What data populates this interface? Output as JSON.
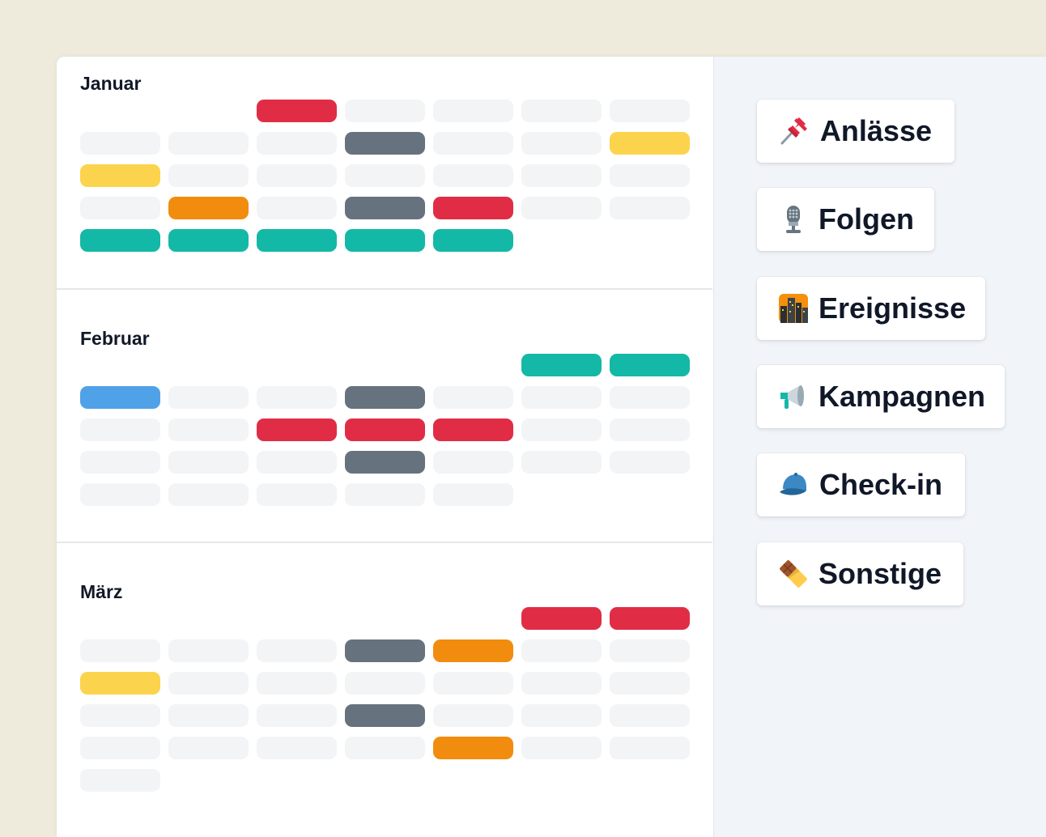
{
  "calendar": {
    "months": [
      {
        "name": "Januar",
        "rows": [
          [
            "none",
            "none",
            "red",
            "empty",
            "empty",
            "empty",
            "empty"
          ],
          [
            "empty",
            "empty",
            "empty",
            "gray",
            "empty",
            "empty",
            "yellow"
          ],
          [
            "yellow",
            "empty",
            "empty",
            "empty",
            "empty",
            "empty",
            "empty"
          ],
          [
            "empty",
            "orange",
            "empty",
            "gray",
            "red",
            "empty",
            "empty"
          ],
          [
            "teal",
            "teal",
            "teal",
            "teal",
            "teal",
            "none",
            "none"
          ]
        ]
      },
      {
        "name": "Februar",
        "rows": [
          [
            "none",
            "none",
            "none",
            "none",
            "none",
            "teal",
            "teal"
          ],
          [
            "blue",
            "empty",
            "empty",
            "gray",
            "empty",
            "empty",
            "empty"
          ],
          [
            "empty",
            "empty",
            "red",
            "red",
            "red",
            "empty",
            "empty"
          ],
          [
            "empty",
            "empty",
            "empty",
            "gray",
            "empty",
            "empty",
            "empty"
          ],
          [
            "empty",
            "empty",
            "empty",
            "empty",
            "empty",
            "none",
            "none"
          ]
        ]
      },
      {
        "name": "März",
        "rows": [
          [
            "none",
            "none",
            "none",
            "none",
            "none",
            "red",
            "red"
          ],
          [
            "empty",
            "empty",
            "empty",
            "gray",
            "orange",
            "empty",
            "empty"
          ],
          [
            "yellow",
            "empty",
            "empty",
            "empty",
            "empty",
            "empty",
            "empty"
          ],
          [
            "empty",
            "empty",
            "empty",
            "gray",
            "empty",
            "empty",
            "empty"
          ],
          [
            "empty",
            "empty",
            "empty",
            "empty",
            "orange",
            "empty",
            "empty"
          ],
          [
            "empty",
            "none",
            "none",
            "none",
            "none",
            "none",
            "none"
          ]
        ]
      }
    ],
    "colors": {
      "red": "#e02d45",
      "gray": "#66727d",
      "yellow": "#fcd34d",
      "orange": "#f28c0e",
      "teal": "#14b8a6",
      "blue": "#50a2e8",
      "empty": "#f3f4f6"
    }
  },
  "sidebar": {
    "filters": [
      {
        "label": "Anlässe",
        "icon": "pushpin-icon"
      },
      {
        "label": "Folgen",
        "icon": "microphone-icon"
      },
      {
        "label": "Ereignisse",
        "icon": "city-night-icon"
      },
      {
        "label": "Kampagnen",
        "icon": "megaphone-icon"
      },
      {
        "label": "Check-in",
        "icon": "cap-icon"
      },
      {
        "label": "Sonstige",
        "icon": "chocolate-bar-icon"
      }
    ]
  }
}
